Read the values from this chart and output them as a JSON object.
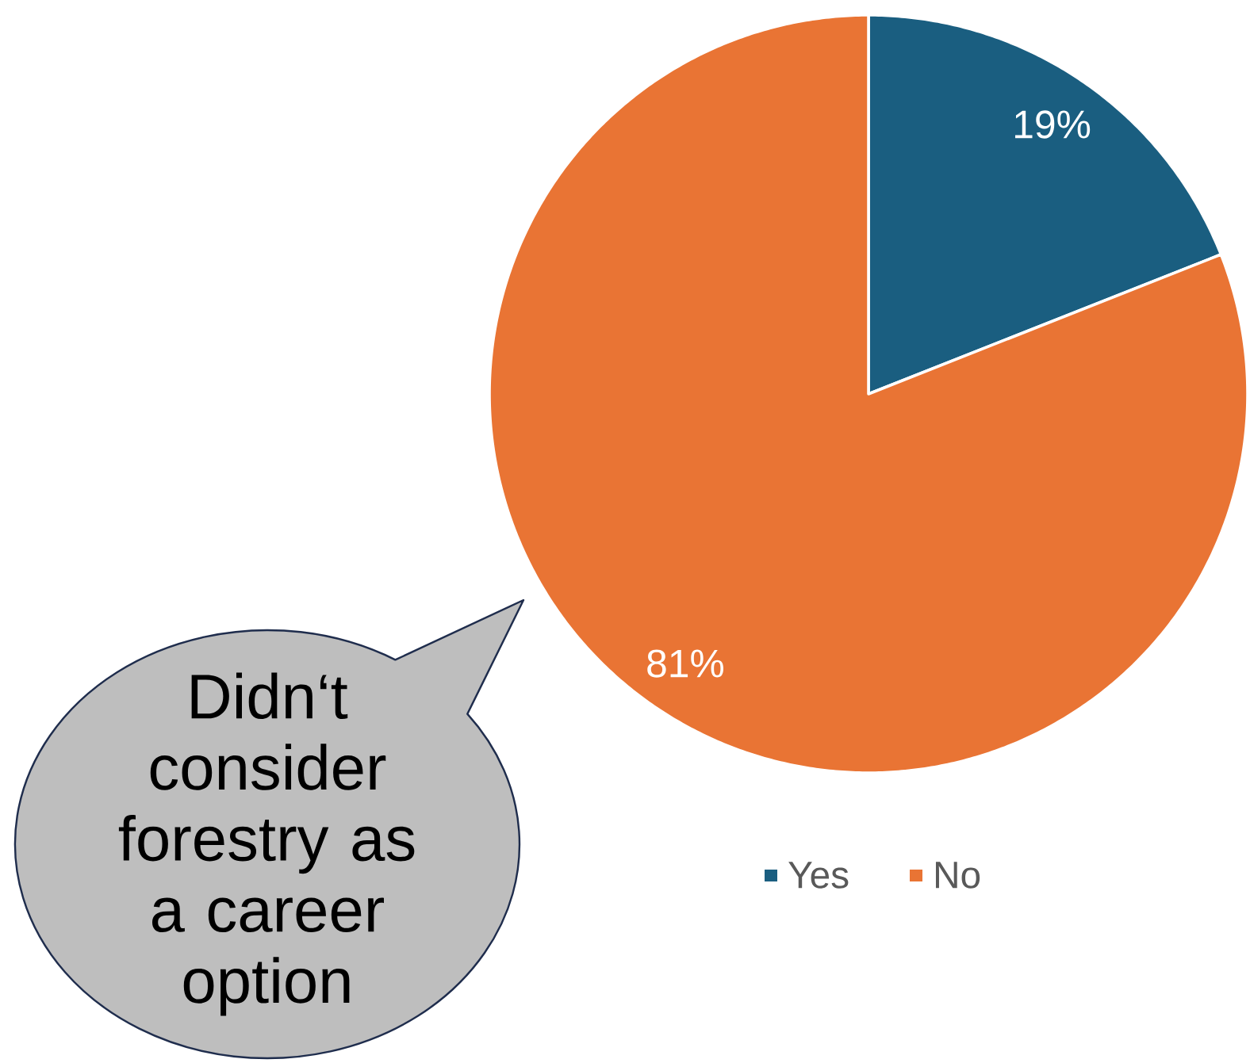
{
  "chart_data": {
    "type": "pie",
    "categories": [
      "Yes",
      "No"
    ],
    "values": [
      19,
      81
    ],
    "colors": [
      "#1a5e80",
      "#e97434"
    ],
    "value_labels": [
      "19%",
      "81%"
    ],
    "legend": "bottom",
    "annotations": [
      "Didn‘t consider forestry as a career option"
    ]
  }
}
